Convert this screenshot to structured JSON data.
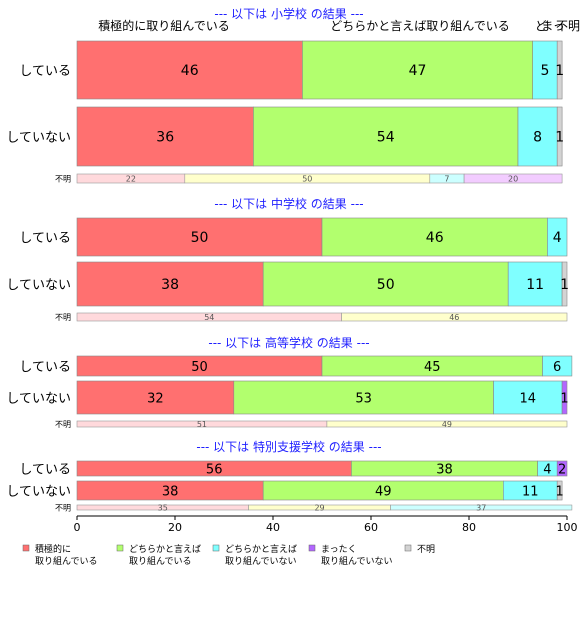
{
  "chart_data": {
    "type": "bar",
    "orientation": "horizontal",
    "stacked": true,
    "xlim": [
      0,
      100
    ],
    "xticks": [
      "0",
      "20",
      "40",
      "60",
      "80",
      "100"
    ],
    "colors": [
      "#ff7070",
      "#b2ff6e",
      "#7fffff",
      "#b266ff",
      "#d3d3d3"
    ],
    "legend": {
      "position": "bottom",
      "entries": [
        {
          "line1": "積極的に",
          "line2": "取り組んでいる"
        },
        {
          "line1": "どちらかと言えば",
          "line2": "取り組んでいる"
        },
        {
          "line1": "どちらかと言えば",
          "line2": "取り組んでいない"
        },
        {
          "line1": "まったく",
          "line2": "取り組んでいない"
        },
        {
          "line1": "不明",
          "line2": ""
        }
      ]
    },
    "panels": [
      {
        "title": "--- 以下は 小学校 の結果 ---",
        "top_labels": [
          "積極的に取り組んでいる",
          "どちらかと言えば取り組んでいる",
          "ど",
          "まっ",
          "不明"
        ],
        "rows": [
          {
            "label": "している",
            "values": [
              46,
              47,
              5,
              0,
              1
            ],
            "labels": [
              "46",
              "47",
              "5",
              "",
              "1"
            ]
          },
          {
            "label": "していない",
            "values": [
              36,
              54,
              8,
              0,
              1
            ],
            "labels": [
              "36",
              "54",
              "8",
              "",
              "1"
            ]
          }
        ],
        "unknown": {
          "label": "不明",
          "values": [
            22,
            50,
            7,
            20
          ],
          "labels": [
            "22",
            "50",
            "7",
            "20"
          ]
        }
      },
      {
        "title": "--- 以下は 中学校 の結果 ---",
        "top_labels": [],
        "rows": [
          {
            "label": "している",
            "values": [
              50,
              46,
              4,
              0,
              0
            ],
            "labels": [
              "50",
              "46",
              "4",
              "",
              ""
            ]
          },
          {
            "label": "していない",
            "values": [
              38,
              50,
              11,
              0,
              1
            ],
            "labels": [
              "38",
              "50",
              "11",
              "",
              "1"
            ]
          }
        ],
        "unknown": {
          "label": "不明",
          "values": [
            54,
            46
          ],
          "labels": [
            "54",
            "46"
          ]
        }
      },
      {
        "title": "--- 以下は 高等学校 の結果 ---",
        "top_labels": [],
        "rows": [
          {
            "label": "している",
            "values": [
              50,
              45,
              6,
              0,
              0
            ],
            "labels": [
              "50",
              "45",
              "6",
              "",
              ""
            ]
          },
          {
            "label": "していない",
            "values": [
              32,
              53,
              14,
              1,
              0
            ],
            "labels": [
              "32",
              "53",
              "14",
              "1",
              ""
            ]
          }
        ],
        "unknown": {
          "label": "不明",
          "values": [
            51,
            49
          ],
          "labels": [
            "51",
            "49"
          ]
        }
      },
      {
        "title": "--- 以下は 特別支援学校 の結果 ---",
        "top_labels": [],
        "rows": [
          {
            "label": "している",
            "values": [
              56,
              38,
              4,
              2,
              0
            ],
            "labels": [
              "56",
              "38",
              "4",
              "2",
              ""
            ]
          },
          {
            "label": "していない",
            "values": [
              38,
              49,
              11,
              0,
              1
            ],
            "labels": [
              "38",
              "49",
              "11",
              "",
              "1"
            ]
          }
        ],
        "unknown": {
          "label": "不明",
          "values": [
            35,
            29,
            37
          ],
          "labels": [
            "35",
            "29",
            "37"
          ]
        }
      }
    ]
  }
}
